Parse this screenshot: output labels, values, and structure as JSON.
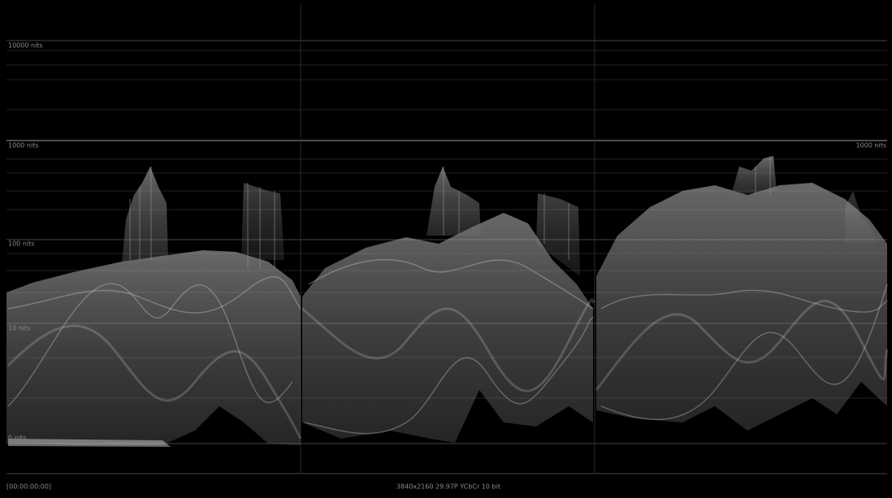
{
  "graticule": {
    "left_labels": [
      "10000 nits",
      "1000 nits",
      "100 nits",
      "10 nits",
      "0 nits"
    ],
    "right_label": "1000 nits"
  },
  "status": {
    "timecode": "[00:00:00:00]",
    "format": "3840x2160 29.97P YCbCr 10 bit"
  }
}
